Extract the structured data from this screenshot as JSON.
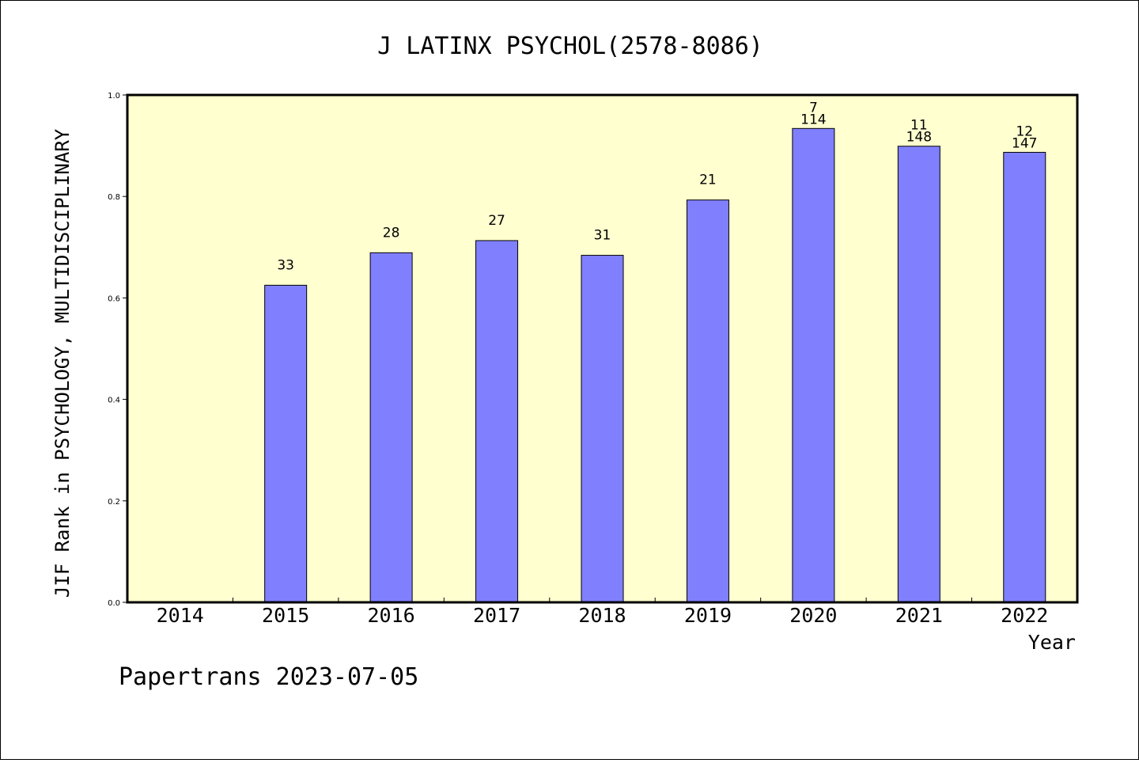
{
  "chart_data": {
    "type": "bar",
    "title": "J LATINX PSYCHOL(2578-8086)",
    "xlabel": "Year",
    "ylabel": "JIF Rank in PSYCHOLOGY, MULTIDISCIPLINARY",
    "ylim": [
      0,
      1.0
    ],
    "yticks": [
      "0.0",
      "0.2",
      "0.4",
      "0.6",
      "0.8",
      "1.0"
    ],
    "categories": [
      "2014",
      "2015",
      "2016",
      "2017",
      "2018",
      "2019",
      "2020",
      "2021",
      "2022"
    ],
    "values": [
      null,
      0.625,
      0.689,
      0.713,
      0.684,
      0.793,
      0.934,
      0.899,
      0.887
    ],
    "labels": [
      [],
      [
        "33"
      ],
      [
        "28"
      ],
      [
        "27"
      ],
      [
        "31"
      ],
      [
        "21"
      ],
      [
        "7",
        "114"
      ],
      [
        "11",
        "148"
      ],
      [
        "12",
        "147"
      ]
    ],
    "grid": false,
    "colors": {
      "bar": "#8080ff",
      "plot_background": "#ffffd0",
      "axis": "#000000"
    }
  },
  "footer": "Papertrans 2023-07-05"
}
